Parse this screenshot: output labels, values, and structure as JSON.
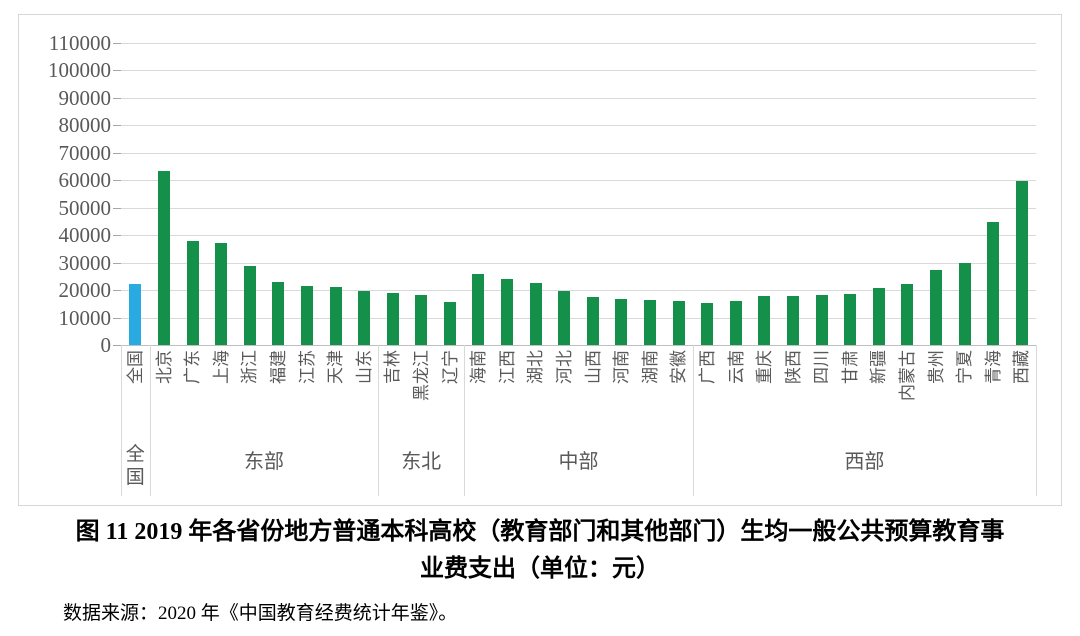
{
  "chart_data": {
    "type": "bar",
    "categories": [
      "全国",
      "北京",
      "广东",
      "上海",
      "浙江",
      "福建",
      "江苏",
      "天津",
      "山东",
      "吉林",
      "黑龙江",
      "辽宁",
      "海南",
      "江西",
      "湖北",
      "河北",
      "山西",
      "河南",
      "湖南",
      "安徽",
      "广西",
      "云南",
      "重庆",
      "陕西",
      "四川",
      "甘肃",
      "新疆",
      "内蒙古",
      "贵州",
      "宁夏",
      "青海",
      "西藏"
    ],
    "values": [
      22200,
      63400,
      37800,
      37000,
      28700,
      22900,
      21500,
      21100,
      19600,
      19000,
      18400,
      15600,
      25700,
      24100,
      22700,
      19600,
      17500,
      16600,
      16300,
      15900,
      15200,
      16000,
      17800,
      17800,
      18300,
      18700,
      20800,
      22300,
      27200,
      29800,
      45000,
      59600
    ],
    "groups": [
      {
        "label": "全国",
        "count": 1,
        "orientation": "vertical"
      },
      {
        "label": "东部",
        "count": 8,
        "orientation": "horizontal"
      },
      {
        "label": "东北",
        "count": 3,
        "orientation": "horizontal"
      },
      {
        "label": "中部",
        "count": 8,
        "orientation": "horizontal"
      },
      {
        "label": "西部",
        "count": 12,
        "orientation": "horizontal"
      }
    ],
    "ylim": [
      0,
      110000
    ],
    "ytick_interval": 10000,
    "grid": true,
    "legend_position": "none",
    "xlabel": "",
    "ylabel": "",
    "bar_color_default": "#14904a",
    "bar_color_highlight": "#29abe2",
    "highlight_index": 0
  },
  "caption": {
    "line1": "图 11  2019 年各省份地方普通本科高校（教育部门和其他部门）生均一般公共预算教育事",
    "line2": "业费支出（单位：元）"
  },
  "source": {
    "text": "数据来源：2020 年《中国教育经费统计年鉴》。"
  }
}
